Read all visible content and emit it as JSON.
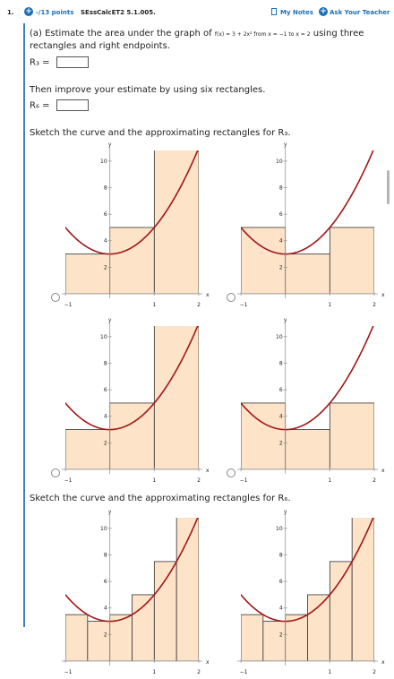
{
  "header": {
    "question_number": "1.",
    "points": "-/13 points",
    "assignment_code": "SEssCalcET2 5.1.005.",
    "my_notes_label": "My Notes",
    "ask_teacher_label": "Ask Your Teacher"
  },
  "part_a": {
    "text_before": "(a) Estimate the area under the graph of",
    "function_text": "f(x) = 3 + 2x² from x = −1 to x = 2",
    "text_after": "using three",
    "line2": "rectangles and right endpoints.",
    "r3_label": "R₃ =",
    "r3_value": "",
    "improve_text": "Then improve your estimate by using six rectangles.",
    "r6_label": "R₆ =",
    "r6_value": "",
    "sketch_r3": "Sketch the curve and the approximating rectangles for R₃.",
    "sketch_r6": "Sketch the curve and the approximating rectangles for R₆."
  },
  "axis": {
    "y_label": "y",
    "x_label": "x",
    "x_ticks": [
      "−1",
      "1",
      "2"
    ],
    "y_ticks": [
      "2",
      "4",
      "6",
      "8",
      "10"
    ]
  },
  "colors": {
    "curve": "#a01616",
    "rect_fill": "#fde3c8",
    "axis": "#999999"
  },
  "chart_data": [
    {
      "type": "area",
      "function": "3 + 2x^2",
      "xlim": [
        -1,
        2
      ],
      "ylim": [
        0,
        10
      ],
      "rectangles": [
        {
          "x0": -1,
          "x1": 0,
          "h": 3
        },
        {
          "x0": 0,
          "x1": 1,
          "h": 5
        },
        {
          "x0": 1,
          "x1": 2,
          "h": 11
        }
      ]
    },
    {
      "type": "area",
      "function": "3 + 2x^2",
      "xlim": [
        -1,
        2
      ],
      "ylim": [
        0,
        10
      ],
      "rectangles": [
        {
          "x0": -1,
          "x1": 0,
          "h": 5
        },
        {
          "x0": 0,
          "x1": 1,
          "h": 3
        },
        {
          "x0": 1,
          "x1": 2,
          "h": 5
        }
      ]
    },
    {
      "type": "area",
      "function": "3 + 2x^2",
      "xlim": [
        -1,
        2
      ],
      "ylim": [
        0,
        10
      ],
      "rectangles": [
        {
          "x0": -1,
          "x1": 0,
          "h": 3
        },
        {
          "x0": 0,
          "x1": 1,
          "h": 5
        },
        {
          "x0": 1,
          "x1": 2,
          "h": 11
        }
      ]
    },
    {
      "type": "area",
      "function": "3 + 2x^2",
      "xlim": [
        -1,
        2
      ],
      "ylim": [
        0,
        10
      ],
      "rectangles": [
        {
          "x0": -1,
          "x1": 0,
          "h": 5
        },
        {
          "x0": 0,
          "x1": 1,
          "h": 3
        },
        {
          "x0": 1,
          "x1": 2,
          "h": 5
        }
      ]
    },
    {
      "type": "area",
      "function": "3 + 2x^2",
      "xlim": [
        -1,
        2
      ],
      "ylim": [
        0,
        10
      ],
      "rectangles": [
        {
          "x0": -1,
          "x1": -0.5,
          "h": 3.5
        },
        {
          "x0": -0.5,
          "x1": 0,
          "h": 3
        },
        {
          "x0": 0,
          "x1": 0.5,
          "h": 3.5
        },
        {
          "x0": 0.5,
          "x1": 1,
          "h": 5
        },
        {
          "x0": 1,
          "x1": 1.5,
          "h": 7.5
        },
        {
          "x0": 1.5,
          "x1": 2,
          "h": 11
        }
      ]
    },
    {
      "type": "area",
      "function": "3 + 2x^2",
      "xlim": [
        -1,
        2
      ],
      "ylim": [
        0,
        10
      ],
      "rectangles": [
        {
          "x0": -1,
          "x1": -0.5,
          "h": 3.5
        },
        {
          "x0": -0.5,
          "x1": 0,
          "h": 3
        },
        {
          "x0": 0,
          "x1": 0.5,
          "h": 3.5
        },
        {
          "x0": 0.5,
          "x1": 1,
          "h": 5
        },
        {
          "x0": 1,
          "x1": 1.5,
          "h": 7.5
        },
        {
          "x0": 1.5,
          "x1": 2,
          "h": 11
        }
      ]
    }
  ]
}
